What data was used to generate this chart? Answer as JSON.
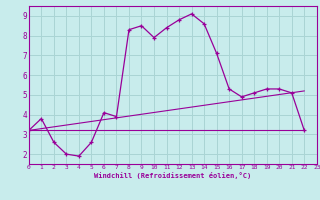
{
  "xlabel": "Windchill (Refroidissement éolien,°C)",
  "background_color": "#c8ecec",
  "grid_color": "#aad4d4",
  "line_color": "#990099",
  "xlim": [
    0,
    23
  ],
  "ylim": [
    1.5,
    9.5
  ],
  "yticks": [
    2,
    3,
    4,
    5,
    6,
    7,
    8,
    9
  ],
  "xticks": [
    0,
    1,
    2,
    3,
    4,
    5,
    6,
    7,
    8,
    9,
    10,
    11,
    12,
    13,
    14,
    15,
    16,
    17,
    18,
    19,
    20,
    21,
    22,
    23
  ],
  "series1_x": [
    0,
    1,
    2,
    3,
    4,
    5,
    6,
    7,
    8,
    9,
    10,
    11,
    12,
    13,
    14,
    15,
    16,
    17,
    18,
    19,
    20,
    21,
    22
  ],
  "series1_y": [
    3.2,
    3.8,
    2.6,
    2.0,
    1.9,
    2.6,
    4.1,
    3.9,
    8.3,
    8.5,
    7.9,
    8.4,
    8.8,
    9.1,
    8.6,
    7.1,
    5.3,
    4.9,
    5.1,
    5.3,
    5.3,
    5.1,
    3.2
  ],
  "line1_x": [
    0,
    22
  ],
  "line1_y": [
    3.2,
    5.2
  ],
  "line2_x": [
    0,
    22
  ],
  "line2_y": [
    3.2,
    3.2
  ]
}
